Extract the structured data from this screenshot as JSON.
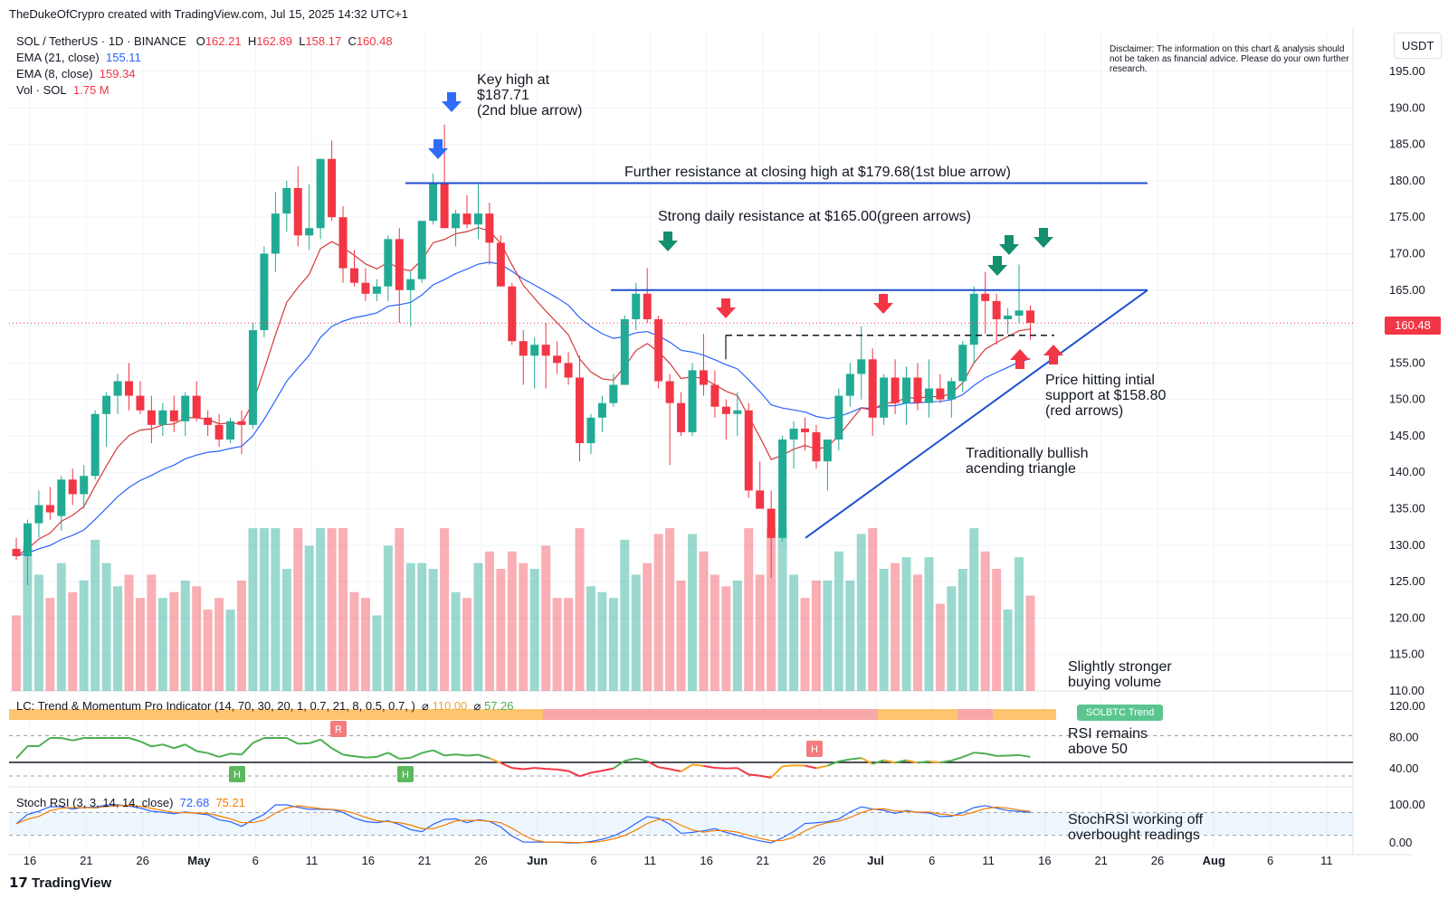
{
  "credit": "TheDukeOfCrypro created with TradingView.com, Jul 15, 2025 14:32 UTC+1",
  "legend": {
    "symbol": "SOL / TetherUS · 1D · BINANCE",
    "o_label": "O",
    "o": "162.21",
    "h_label": "H",
    "h": "162.89",
    "l_label": "L",
    "l": "158.17",
    "c_label": "C",
    "c": "160.48",
    "ema21_label": "EMA (21, close)",
    "ema21": "155.11",
    "ema8_label": "EMA (8, close)",
    "ema8": "159.34",
    "vol_label": "Vol · SOL",
    "vol": "1.75 M"
  },
  "currency": "USDT",
  "last_price": "160.48",
  "disclaimer": "Disclaimer: The information on this chart & analysis should not be taken as financial advice. Please do your own further research.",
  "annotations": {
    "key_high_1": "Key high at",
    "key_high_2": "$187.71",
    "key_high_3": "(2nd blue arrow)",
    "further_resistance": "Further resistance at closing high at $179.68(1st blue arrow)",
    "strong_resistance": "Strong daily resistance at $165.00(green arrows)",
    "support_1": "Price hitting intial",
    "support_2": "support at $158.80",
    "support_3": "(red arrows)",
    "triangle_1": "Traditionally bullish",
    "triangle_2": "acending triangle",
    "volume_1": "Slightly stronger",
    "volume_2": "buying volume",
    "rsi_1": "RSI remains",
    "rsi_2": "above 50",
    "stoch_1": "StochRSI working off",
    "stoch_2": "overbought readings"
  },
  "indicator": {
    "title": "LC: Trend & Momentum Pro Indicator (14, 70, 30, 20, 1, 0.7, 21, 8, 0.5, 0.7, )",
    "v1": "110.00",
    "v2": "57.26",
    "badge": "SOLBTC Trend",
    "markers": [
      "R",
      "H",
      "H",
      "H"
    ],
    "yticks": [
      "120.00",
      "80.00",
      "40.00"
    ]
  },
  "stoch": {
    "title": "Stoch RSI (3, 3, 14, 14, close)",
    "k": "72.68",
    "d": "75.21",
    "yticks": [
      "100.00",
      "0.00"
    ]
  },
  "brand": "TradingView",
  "colors": {
    "up": "#22ab94",
    "down": "#f23645",
    "ema21": "#2962ff",
    "ema8": "#d63a3a",
    "line": "#1f4fd1",
    "green_arrow": "#138f6e",
    "red_arrow": "#f23645",
    "blue_arrow": "#2f6df6"
  },
  "chart_data": {
    "type": "candlestick",
    "y_axis": {
      "ticks": [
        "195.00",
        "190.00",
        "185.00",
        "180.00",
        "175.00",
        "170.00",
        "165.00",
        "160.00",
        "155.00",
        "150.00",
        "145.00",
        "140.00",
        "135.00",
        "130.00",
        "125.00",
        "120.00",
        "115.00",
        "110.00"
      ],
      "range": [
        110,
        197
      ]
    },
    "x_ticks": [
      "16",
      "21",
      "26",
      "May",
      "6",
      "11",
      "16",
      "21",
      "26",
      "Jun",
      "6",
      "11",
      "16",
      "21",
      "26",
      "Jul",
      "6",
      "11",
      "16",
      "21",
      "26",
      "Aug",
      "6",
      "11"
    ],
    "candles_ohlc": [
      [
        129.5,
        131.0,
        128.0,
        128.5
      ],
      [
        128.5,
        133.5,
        124.5,
        133.0
      ],
      [
        133.0,
        137.5,
        131.0,
        135.5
      ],
      [
        135.5,
        138.0,
        133.5,
        134.5
      ],
      [
        134.0,
        139.5,
        132.0,
        139.0
      ],
      [
        139.0,
        140.5,
        135.5,
        137.0
      ],
      [
        137.0,
        141.0,
        135.0,
        139.5
      ],
      [
        139.5,
        148.5,
        139.0,
        148.0
      ],
      [
        148.0,
        151.0,
        143.5,
        150.5
      ],
      [
        150.5,
        153.5,
        148.0,
        152.5
      ],
      [
        152.5,
        155.0,
        148.5,
        150.5
      ],
      [
        150.5,
        152.5,
        148.0,
        148.5
      ],
      [
        148.5,
        150.5,
        144.0,
        146.5
      ],
      [
        146.5,
        149.5,
        145.0,
        148.5
      ],
      [
        148.5,
        150.5,
        145.5,
        147.0
      ],
      [
        147.0,
        151.0,
        145.0,
        150.5
      ],
      [
        150.5,
        152.5,
        147.0,
        147.5
      ],
      [
        147.5,
        148.5,
        145.0,
        146.5
      ],
      [
        146.5,
        148.0,
        143.5,
        144.5
      ],
      [
        144.5,
        147.5,
        144.0,
        147.0
      ],
      [
        147.0,
        148.5,
        142.5,
        146.5
      ],
      [
        146.5,
        160.5,
        146.0,
        159.5
      ],
      [
        159.5,
        171.0,
        158.5,
        170.0
      ],
      [
        170.0,
        178.5,
        167.5,
        175.5
      ],
      [
        175.5,
        180.0,
        173.0,
        179.0
      ],
      [
        179.0,
        182.0,
        171.0,
        172.5
      ],
      [
        172.5,
        179.5,
        170.5,
        173.5
      ],
      [
        173.5,
        183.0,
        172.0,
        183.0
      ],
      [
        183.0,
        185.5,
        174.5,
        175.0
      ],
      [
        175.0,
        176.5,
        166.0,
        168.0
      ],
      [
        168.0,
        170.5,
        165.5,
        166.0
      ],
      [
        166.0,
        168.0,
        163.5,
        164.5
      ],
      [
        164.5,
        166.5,
        163.5,
        165.5
      ],
      [
        165.5,
        172.5,
        163.5,
        172.0
      ],
      [
        172.0,
        173.5,
        160.5,
        165.0
      ],
      [
        165.0,
        167.5,
        160.0,
        166.5
      ],
      [
        166.5,
        173.5,
        166.0,
        174.5
      ],
      [
        174.5,
        181.0,
        174.0,
        179.7
      ],
      [
        179.7,
        187.7,
        173.5,
        173.5
      ],
      [
        173.5,
        176.0,
        171.0,
        175.5
      ],
      [
        175.5,
        178.0,
        173.5,
        174.0
      ],
      [
        174.0,
        179.5,
        172.0,
        175.5
      ],
      [
        175.5,
        177.0,
        168.5,
        171.5
      ],
      [
        171.5,
        172.5,
        165.5,
        165.5
      ],
      [
        165.5,
        166.0,
        157.5,
        158.0
      ],
      [
        158.0,
        159.5,
        152.0,
        156.0
      ],
      [
        156.0,
        158.5,
        151.5,
        157.5
      ],
      [
        157.5,
        160.5,
        151.5,
        156.0
      ],
      [
        156.0,
        158.0,
        153.5,
        155.0
      ],
      [
        155.0,
        156.5,
        152.0,
        153.0
      ],
      [
        153.0,
        156.0,
        141.5,
        144.0
      ],
      [
        144.0,
        148.0,
        142.5,
        147.5
      ],
      [
        147.5,
        150.5,
        145.5,
        149.5
      ],
      [
        149.5,
        153.5,
        149.0,
        152.0
      ],
      [
        152.0,
        161.5,
        152.0,
        161.0
      ],
      [
        161.0,
        166.0,
        159.5,
        164.5
      ],
      [
        164.5,
        168.0,
        160.5,
        161.0
      ],
      [
        161.0,
        161.5,
        151.5,
        152.5
      ],
      [
        152.5,
        153.5,
        141.0,
        149.5
      ],
      [
        149.5,
        151.0,
        145.0,
        145.5
      ],
      [
        145.5,
        155.0,
        145.0,
        154.0
      ],
      [
        154.0,
        159.0,
        150.5,
        152.0
      ],
      [
        152.0,
        154.0,
        147.5,
        149.0
      ],
      [
        149.0,
        150.0,
        144.5,
        148.0
      ],
      [
        148.0,
        151.0,
        145.0,
        148.5
      ],
      [
        148.5,
        149.5,
        136.5,
        137.5
      ],
      [
        137.5,
        141.5,
        135.0,
        135.0
      ],
      [
        135.0,
        137.5,
        125.5,
        131.0
      ],
      [
        131.0,
        145.0,
        130.5,
        144.5
      ],
      [
        144.5,
        147.0,
        140.5,
        146.0
      ],
      [
        146.0,
        147.5,
        143.0,
        145.5
      ],
      [
        145.5,
        146.5,
        140.5,
        141.5
      ],
      [
        141.5,
        143.5,
        137.5,
        144.5
      ],
      [
        144.5,
        151.5,
        143.0,
        150.5
      ],
      [
        150.5,
        155.0,
        149.0,
        153.5
      ],
      [
        153.5,
        160.0,
        150.0,
        155.5
      ],
      [
        155.5,
        157.0,
        145.0,
        147.5
      ],
      [
        147.5,
        153.5,
        146.5,
        153.0
      ],
      [
        153.0,
        155.5,
        148.0,
        149.5
      ],
      [
        149.5,
        154.5,
        146.5,
        153.0
      ],
      [
        153.0,
        155.0,
        148.5,
        149.5
      ],
      [
        149.5,
        155.5,
        147.5,
        151.5
      ],
      [
        151.5,
        153.5,
        149.5,
        150.0
      ],
      [
        150.0,
        153.0,
        147.5,
        152.5
      ],
      [
        152.5,
        158.0,
        151.0,
        157.5
      ],
      [
        157.5,
        165.5,
        155.0,
        164.5
      ],
      [
        164.5,
        167.5,
        159.0,
        163.5
      ],
      [
        163.5,
        164.5,
        157.5,
        161.0
      ],
      [
        161.0,
        162.5,
        159.0,
        161.5
      ],
      [
        161.5,
        168.5,
        160.5,
        162.2
      ],
      [
        162.2,
        162.9,
        158.2,
        160.5
      ]
    ],
    "levels": {
      "closing_high_resistance": 179.68,
      "key_high": 187.71,
      "daily_resistance": 165.0,
      "initial_support": 158.8
    },
    "pattern": "ascending triangle"
  }
}
